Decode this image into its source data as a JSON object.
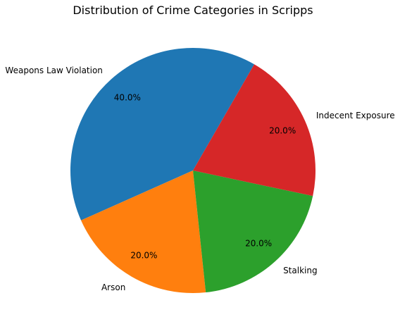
{
  "chart_data": {
    "type": "pie",
    "title": "Distribution of Crime Categories in Scripps",
    "slices": [
      {
        "label": "Weapons Law Violation",
        "value": 40.0,
        "pct_label": "40.0%",
        "color": "#1f77b4"
      },
      {
        "label": "Arson",
        "value": 20.0,
        "pct_label": "20.0%",
        "color": "#ff7f0e"
      },
      {
        "label": "Stalking",
        "value": 20.0,
        "pct_label": "20.0%",
        "color": "#2ca02c"
      },
      {
        "label": "Indecent Exposure",
        "value": 20.0,
        "pct_label": "20.0%",
        "color": "#d62728"
      }
    ],
    "start_angle_deg": 60,
    "direction": "counterclockwise"
  }
}
